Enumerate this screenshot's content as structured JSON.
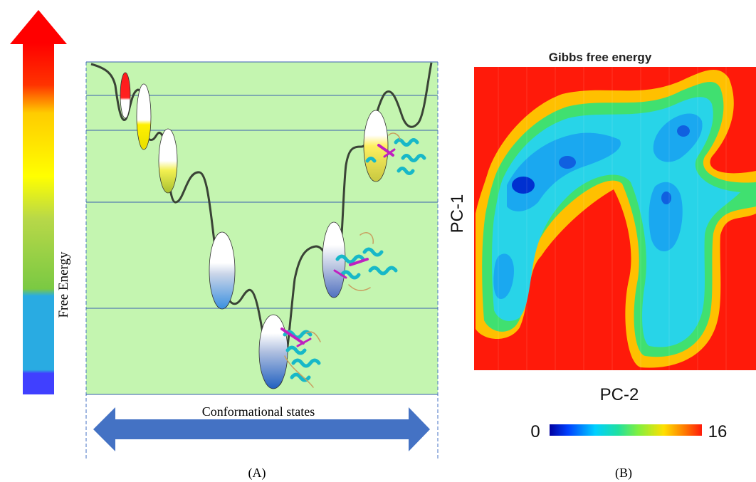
{
  "panel_a": {
    "colorbar_label": "Free Energy",
    "xaxis_label": "Conformational states",
    "caption": "(A)"
  },
  "panel_b": {
    "title": "Gibbs free energy",
    "ylabel": "PC-1",
    "xlabel": "PC-2",
    "colorbar_min": "0",
    "colorbar_max": "16",
    "caption": "(B)"
  },
  "colors": {
    "background_green": "#c4f5b0",
    "curve": "#3a4336",
    "gridline": "#3a5fb0",
    "arrow_blue": "#4472c4",
    "heatmap_red": "#ff1a0a"
  },
  "chart_data": {
    "type": "heatmap",
    "title": "Gibbs free energy",
    "xlabel": "PC-2",
    "ylabel": "PC-1",
    "value_range": [
      0,
      16
    ]
  }
}
